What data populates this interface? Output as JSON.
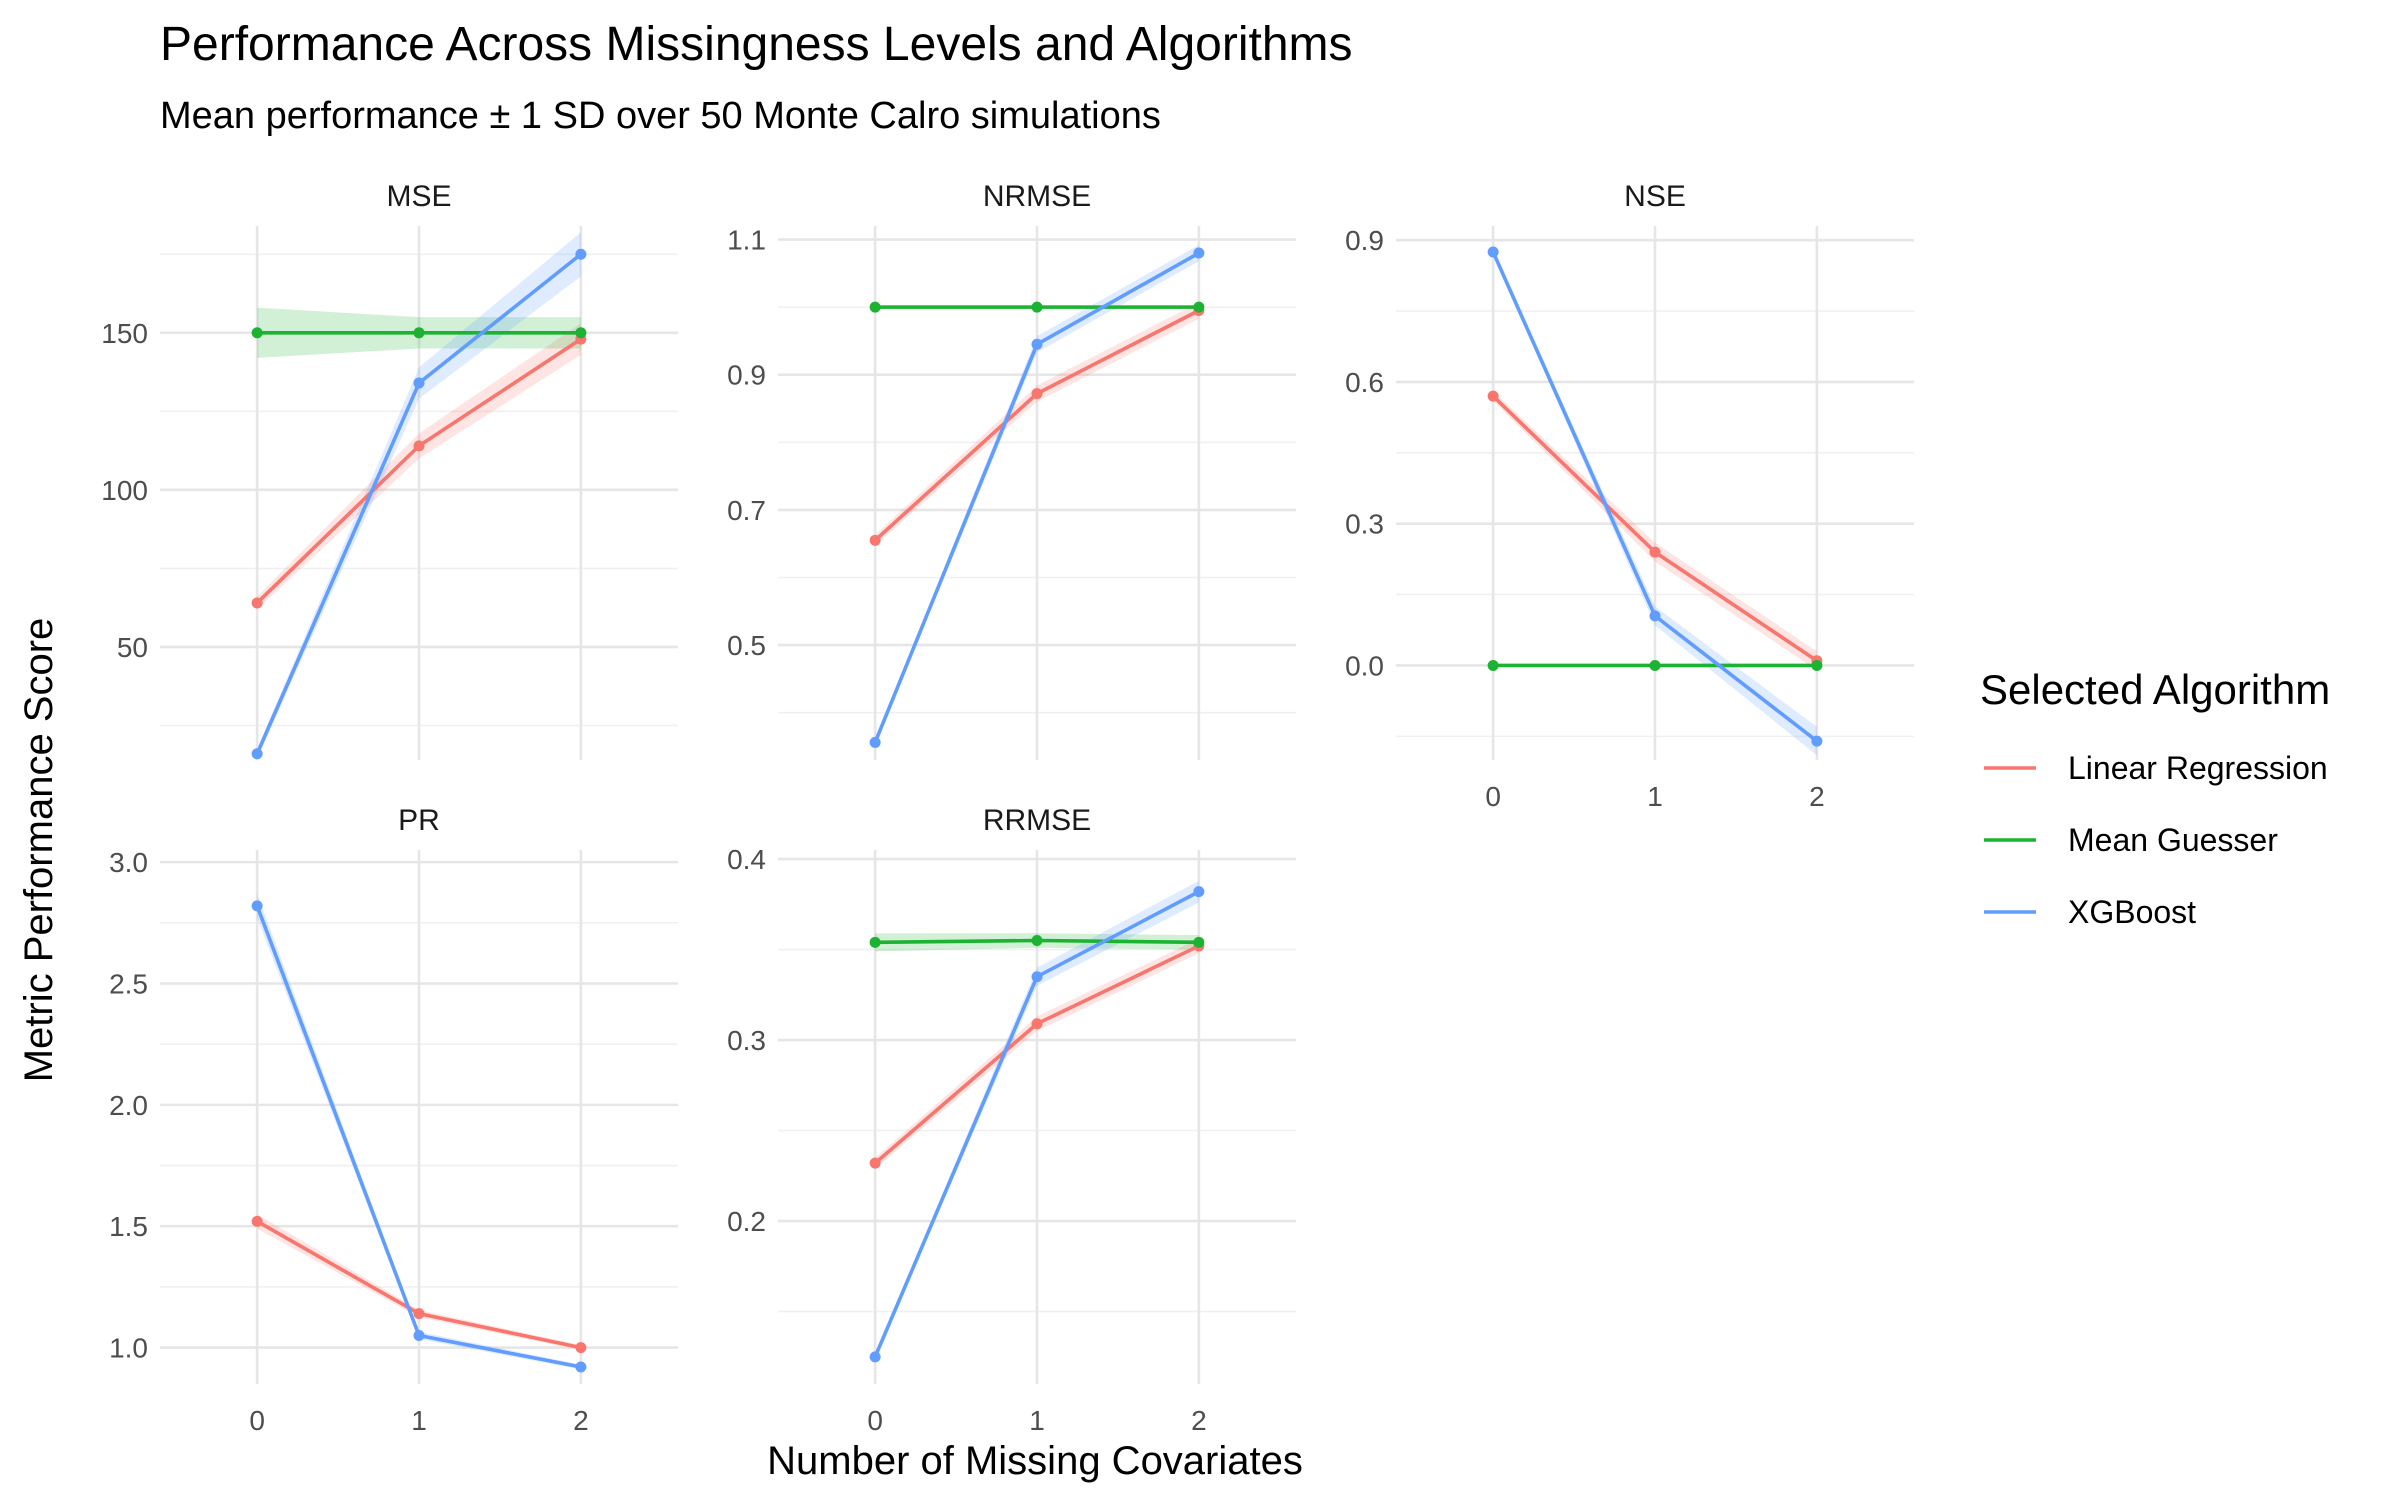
{
  "chart_data": {
    "type": "line",
    "title": "Performance Across Missingness Levels and Algorithms",
    "subtitle": "Mean performance ± 1 SD over 50 Monte Calro simulations",
    "xlabel": "Number of Missing Covariates",
    "ylabel": "Metric Performance Score",
    "legend_title": "Selected Algorithm",
    "legend_position": "right",
    "grid": true,
    "x": [
      0,
      1,
      2
    ],
    "x_ticks": [
      "0",
      "1",
      "2"
    ],
    "legend": [
      {
        "name": "Linear Regression",
        "color": "#f8766d"
      },
      {
        "name": "Mean Guesser",
        "color": "#1db332"
      },
      {
        "name": "XGBoost",
        "color": "#619cff"
      }
    ],
    "facets": [
      {
        "name": "MSE",
        "ylim": [
          14,
          184
        ],
        "yticks": [
          "50",
          "100",
          "150"
        ],
        "series": [
          {
            "name": "Linear Regression",
            "values": [
              64,
              114,
              148
            ],
            "sd": [
              2,
              4,
              5
            ]
          },
          {
            "name": "Mean Guesser",
            "values": [
              150,
              150,
              150
            ],
            "sd": [
              8,
              5,
              5
            ]
          },
          {
            "name": "XGBoost",
            "values": [
              16,
              134,
              175
            ],
            "sd": [
              1.5,
              5,
              7
            ]
          }
        ]
      },
      {
        "name": "NRMSE",
        "ylim": [
          0.33,
          1.12
        ],
        "yticks": [
          "0.5",
          "0.7",
          "0.9",
          "1.1"
        ],
        "series": [
          {
            "name": "Linear Regression",
            "values": [
              0.655,
              0.872,
              0.995
            ],
            "sd": [
              0.008,
              0.012,
              0.012
            ]
          },
          {
            "name": "Mean Guesser",
            "values": [
              1.0,
              1.0,
              1.0
            ],
            "sd": [
              0.003,
              0.003,
              0.003
            ]
          },
          {
            "name": "XGBoost",
            "values": [
              0.356,
              0.945,
              1.08
            ],
            "sd": [
              0.004,
              0.012,
              0.012
            ]
          }
        ]
      },
      {
        "name": "NSE",
        "ylim": [
          -0.2,
          0.93
        ],
        "yticks": [
          "0.0",
          "0.3",
          "0.6",
          "0.9"
        ],
        "series": [
          {
            "name": "Linear Regression",
            "values": [
              0.57,
              0.24,
              0.01
            ],
            "sd": [
              0.01,
              0.02,
              0.02
            ]
          },
          {
            "name": "Mean Guesser",
            "values": [
              0.0,
              0.0,
              0.0
            ],
            "sd": [
              0.003,
              0.003,
              0.003
            ]
          },
          {
            "name": "XGBoost",
            "values": [
              0.875,
              0.105,
              -0.16
            ],
            "sd": [
              0.005,
              0.02,
              0.03
            ]
          }
        ]
      },
      {
        "name": "PR",
        "ylim": [
          0.85,
          3.05
        ],
        "yticks": [
          "1.0",
          "1.5",
          "2.0",
          "2.5",
          "3.0"
        ],
        "series": [
          {
            "name": "Linear Regression",
            "values": [
              1.52,
              1.14,
              1.0
            ],
            "sd": [
              0.03,
              0.015,
              0.01
            ]
          },
          {
            "name": "XGBoost",
            "values": [
              2.82,
              1.05,
              0.92
            ],
            "sd": [
              0.05,
              0.015,
              0.01
            ]
          }
        ]
      },
      {
        "name": "RRMSE",
        "ylim": [
          0.11,
          0.405
        ],
        "yticks": [
          "0.2",
          "0.3",
          "0.4"
        ],
        "series": [
          {
            "name": "Linear Regression",
            "values": [
              0.232,
              0.309,
              0.352
            ],
            "sd": [
              0.003,
              0.004,
              0.004
            ]
          },
          {
            "name": "Mean Guesser",
            "values": [
              0.354,
              0.355,
              0.354
            ],
            "sd": [
              0.005,
              0.004,
              0.004
            ]
          },
          {
            "name": "XGBoost",
            "values": [
              0.125,
              0.335,
              0.382
            ],
            "sd": [
              0.001,
              0.005,
              0.006
            ]
          }
        ]
      }
    ]
  }
}
